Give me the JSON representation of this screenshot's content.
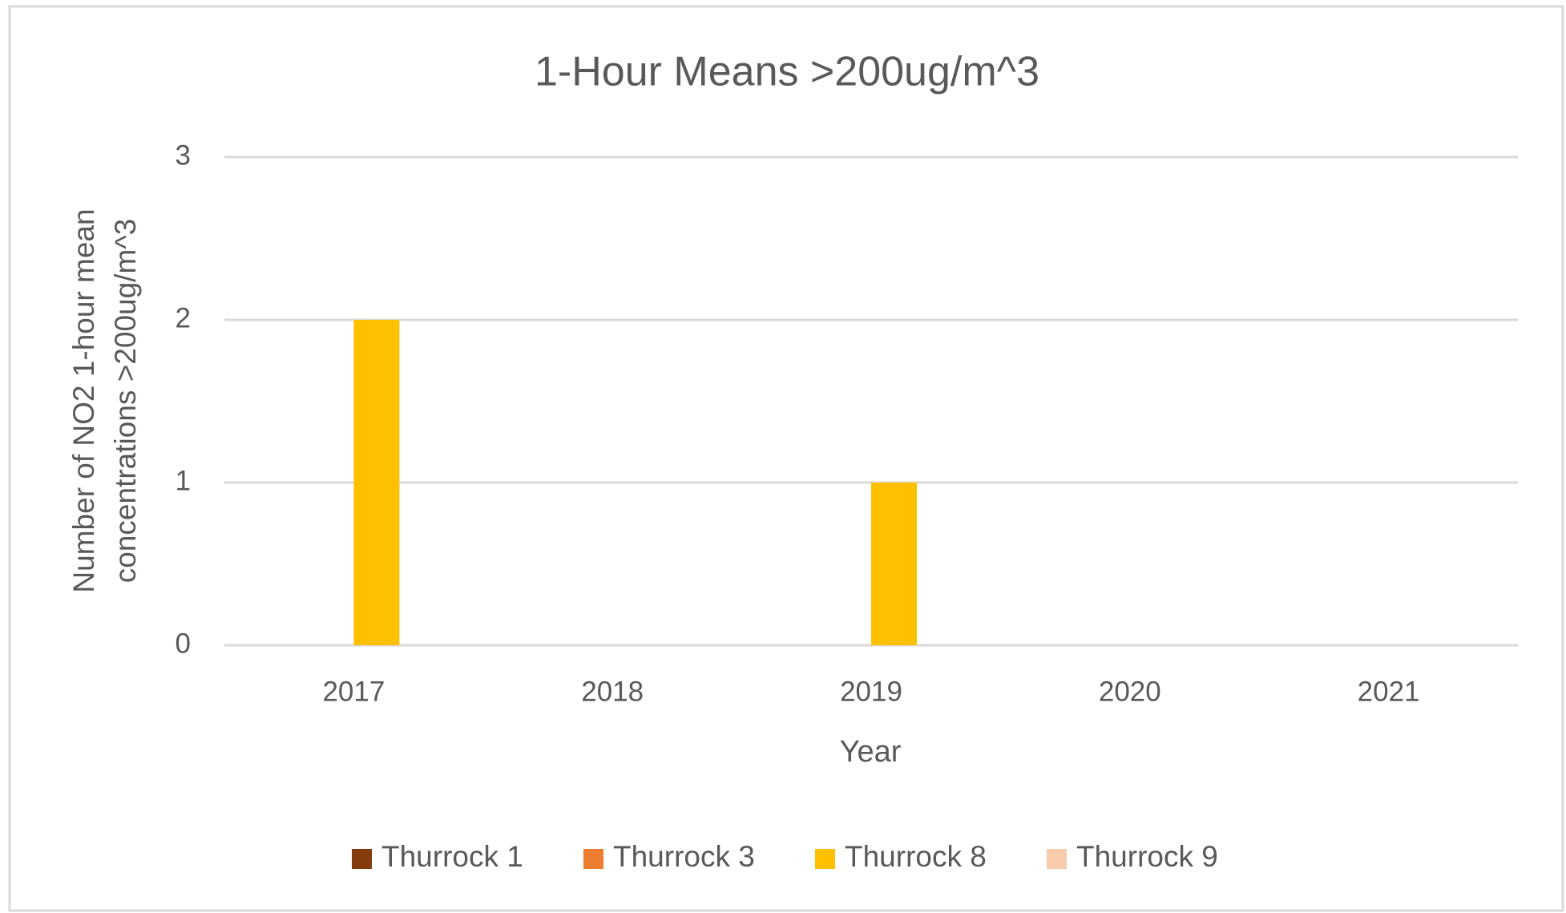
{
  "chart_data": {
    "type": "bar",
    "title": "1-Hour Means >200ug/m^3",
    "xlabel": "Year",
    "ylabel": [
      "Number of NO2 1-hour mean",
      "concentrations >200ug/m^3"
    ],
    "categories": [
      "2017",
      "2018",
      "2019",
      "2020",
      "2021"
    ],
    "series": [
      {
        "name": "Thurrock 1",
        "color": "#843c0c",
        "values": [
          0,
          0,
          0,
          0,
          0
        ]
      },
      {
        "name": "Thurrock 3",
        "color": "#ed7d31",
        "values": [
          0,
          0,
          0,
          0,
          0
        ]
      },
      {
        "name": "Thurrock 8",
        "color": "#ffc000",
        "values": [
          2,
          0,
          1,
          0,
          0
        ]
      },
      {
        "name": "Thurrock 9",
        "color": "#f8cbad",
        "values": [
          0,
          0,
          0,
          0,
          0
        ]
      }
    ],
    "ylim": [
      0,
      3
    ],
    "yticks": [
      0,
      1,
      2,
      3
    ],
    "grid": true,
    "legend": "bottom"
  }
}
